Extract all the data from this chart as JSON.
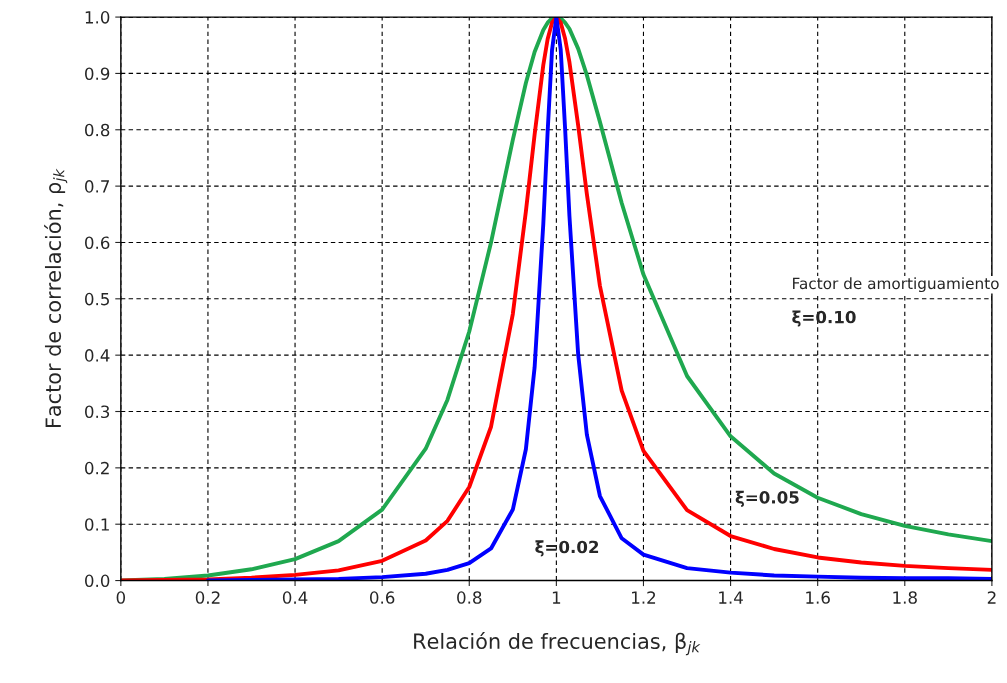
{
  "chart_data": {
    "type": "line",
    "xlabel": "Relación de frecuencias, β$_{jk}$",
    "ylabel": "Factor de correlación, ρ$_{jk}$",
    "x": [
      0,
      0.1,
      0.2,
      0.3,
      0.4,
      0.5,
      0.6,
      0.7,
      0.75,
      0.8,
      0.85,
      0.9,
      0.93,
      0.95,
      0.97,
      0.98,
      0.99,
      1.0,
      1.01,
      1.02,
      1.03,
      1.05,
      1.07,
      1.1,
      1.15,
      1.2,
      1.3,
      1.4,
      1.5,
      1.6,
      1.7,
      1.8,
      1.9,
      2.0
    ],
    "series": [
      {
        "color": "#1fa84f",
        "values": [
          0,
          0.003,
          0.009,
          0.02,
          0.038,
          0.07,
          0.126,
          0.234,
          0.321,
          0.442,
          0.6,
          0.782,
          0.883,
          0.938,
          0.977,
          0.99,
          0.998,
          1.0,
          0.998,
          0.99,
          0.979,
          0.944,
          0.897,
          0.814,
          0.67,
          0.543,
          0.363,
          0.256,
          0.19,
          0.147,
          0.118,
          0.097,
          0.082,
          0.07
        ]
      },
      {
        "color": "#ff0000",
        "values": [
          0,
          0.001,
          0.002,
          0.005,
          0.01,
          0.018,
          0.035,
          0.071,
          0.106,
          0.166,
          0.273,
          0.473,
          0.655,
          0.791,
          0.915,
          0.961,
          0.99,
          1.0,
          0.99,
          0.962,
          0.92,
          0.808,
          0.686,
          0.523,
          0.337,
          0.23,
          0.125,
          0.079,
          0.056,
          0.041,
          0.032,
          0.026,
          0.022,
          0.019
        ]
      },
      {
        "color": "#0000ff",
        "values": [
          null,
          null,
          0.0,
          0.001,
          0.002,
          0.003,
          0.006,
          0.012,
          0.019,
          0.031,
          0.057,
          0.126,
          0.233,
          0.378,
          0.633,
          0.797,
          0.941,
          1.0,
          0.942,
          0.803,
          0.647,
          0.402,
          0.259,
          0.15,
          0.075,
          0.046,
          0.022,
          0.014,
          0.009,
          0.007,
          0.005,
          0.004,
          0.004,
          0.003
        ]
      }
    ],
    "xlim": [
      0,
      2
    ],
    "ylim": [
      0,
      1
    ],
    "xticks": [
      0,
      0.2,
      0.4,
      0.6,
      0.8,
      1,
      1.2,
      1.4,
      1.6,
      1.8,
      2
    ],
    "yticks": [
      {
        "value": 0,
        "label": "0.0"
      },
      0.1,
      0.2,
      0.3,
      0.4,
      0.5,
      0.6,
      0.7,
      0.8,
      0.9,
      {
        "value": 1,
        "label": "1.0"
      }
    ],
    "grid": true,
    "line_style": "solid",
    "marker": "none",
    "annotations": [
      "Factor de amortiguamiento",
      "ξ=0.10",
      "ξ=0.05",
      "ξ=0.02"
    ]
  }
}
